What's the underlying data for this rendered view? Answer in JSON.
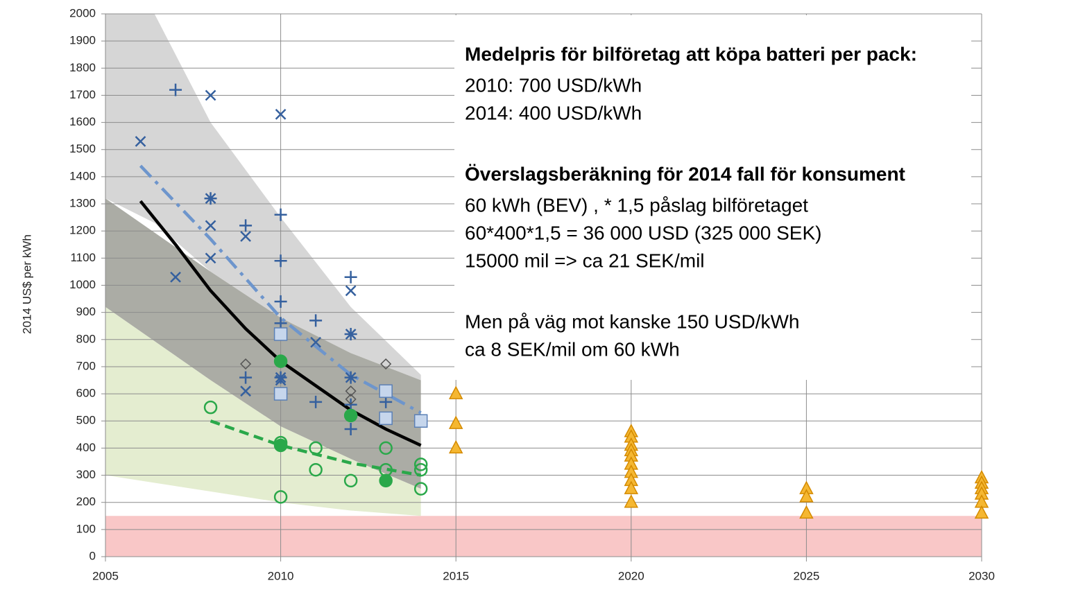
{
  "chart_data": {
    "type": "scatter",
    "ylabel": "2014 US$ per kWh",
    "xlim": [
      2005,
      2030
    ],
    "xticks": [
      2005,
      2010,
      2015,
      2020,
      2025,
      2030
    ],
    "ylim": [
      0,
      2000
    ],
    "yticks": [
      0,
      100,
      200,
      300,
      400,
      500,
      600,
      700,
      800,
      900,
      1000,
      1100,
      1200,
      1300,
      1400,
      1500,
      1600,
      1700,
      1800,
      1900,
      2000
    ],
    "grid": true,
    "bands": [
      {
        "color": "#d6d6d6",
        "x": [
          2005,
          2006.4,
          2008,
          2010,
          2012,
          2014
        ],
        "upper": [
          2000,
          2000,
          1600,
          1250,
          920,
          670
        ],
        "lower": [
          1320,
          1230,
          1050,
          880,
          750,
          650
        ]
      },
      {
        "color": "#abaca5",
        "x": [
          2005,
          2008,
          2010,
          2012,
          2014
        ],
        "upper": [
          1320,
          1050,
          880,
          750,
          650
        ],
        "lower": [
          920,
          650,
          480,
          360,
          250
        ]
      },
      {
        "color": "#e4edd0",
        "x": [
          2005,
          2008,
          2010,
          2012,
          2014
        ],
        "upper": [
          920,
          650,
          480,
          360,
          250
        ],
        "lower": [
          300,
          240,
          200,
          170,
          150
        ]
      },
      {
        "color": "#f9c7c7",
        "x": [
          2005,
          2030
        ],
        "upper": [
          150,
          150
        ],
        "lower": [
          0,
          0
        ]
      }
    ],
    "lines": [
      {
        "color": "#6d95cc",
        "dash": "22 9 5 9",
        "x": [
          2006,
          2008,
          2010,
          2012,
          2014
        ],
        "values": [
          1440,
          1170,
          880,
          670,
          530
        ]
      },
      {
        "color": "#000000",
        "dash": "none",
        "x": [
          2006,
          2007,
          2008,
          2009,
          2010,
          2011,
          2012,
          2013,
          2014
        ],
        "values": [
          1310,
          1150,
          980,
          840,
          720,
          630,
          540,
          470,
          410
        ]
      },
      {
        "color": "#2aa84a",
        "dash": "14 8",
        "x": [
          2008,
          2010,
          2012,
          2014
        ],
        "values": [
          500,
          410,
          345,
          300
        ]
      }
    ],
    "series": [
      {
        "marker": "plus",
        "color": "#35609e",
        "x": [
          2007,
          2009,
          2009,
          2010,
          2010,
          2010,
          2010,
          2011,
          2011,
          2012,
          2012,
          2012,
          2012,
          2012,
          2013
        ],
        "values": [
          1720,
          1220,
          660,
          1260,
          1090,
          940,
          860,
          870,
          570,
          1030,
          820,
          660,
          560,
          470,
          570
        ]
      },
      {
        "marker": "cross",
        "color": "#35609e",
        "x": [
          2006,
          2007,
          2008,
          2008,
          2008,
          2009,
          2009,
          2010,
          2010,
          2011,
          2012,
          2012,
          2012,
          2013
        ],
        "values": [
          1530,
          1030,
          1700,
          1220,
          1100,
          1180,
          610,
          1630,
          650,
          790,
          980,
          820,
          660,
          510
        ]
      },
      {
        "marker": "star",
        "color": "#35609e",
        "x": [
          2008,
          2010
        ],
        "values": [
          1320,
          660
        ]
      },
      {
        "marker": "diamond",
        "color": "#555555",
        "x": [
          2009,
          2012,
          2012,
          2013,
          2013
        ],
        "values": [
          710,
          610,
          580,
          710,
          510
        ]
      },
      {
        "marker": "square",
        "color": "#5b80b6",
        "x": [
          2010,
          2010,
          2013,
          2013,
          2014
        ],
        "values": [
          820,
          600,
          610,
          510,
          500
        ]
      },
      {
        "marker": "dot",
        "color": "#2aa84a",
        "x": [
          2010,
          2010,
          2012,
          2013
        ],
        "values": [
          720,
          410,
          520,
          280
        ]
      },
      {
        "marker": "ring",
        "color": "#2aa84a",
        "x": [
          2008,
          2010,
          2010,
          2011,
          2011,
          2012,
          2013,
          2013,
          2014,
          2014,
          2014
        ],
        "values": [
          550,
          420,
          220,
          400,
          320,
          280,
          400,
          320,
          340,
          320,
          250
        ]
      },
      {
        "marker": "triangle",
        "color": "#f5b731",
        "x": [
          2015,
          2015,
          2015,
          2020,
          2020,
          2020,
          2020,
          2020,
          2020,
          2020,
          2020,
          2020,
          2020,
          2025,
          2025,
          2025,
          2030,
          2030,
          2030,
          2030,
          2030,
          2030
        ],
        "values": [
          600,
          490,
          400,
          460,
          440,
          410,
          390,
          370,
          340,
          310,
          280,
          250,
          200,
          250,
          220,
          160,
          290,
          270,
          250,
          230,
          200,
          160
        ]
      }
    ],
    "annotations": [
      {
        "title": "Medelpris för bilföretag att köpa batteri per pack:",
        "lines": [
          "2010: 700 USD/kWh",
          "2014: 400 USD/kWh"
        ]
      },
      {
        "title": "Överslagsberäkning för 2014 fall för konsument",
        "lines": [
          "60 kWh (BEV) , * 1,5 påslag bilföretaget",
          "60*400*1,5 = 36 000 USD (325 000 SEK)",
          "15000 mil => ca 21 SEK/mil"
        ]
      },
      {
        "lines": [
          "Men på väg mot kanske 150 USD/kWh",
          "ca 8 SEK/mil om 60 kWh"
        ]
      }
    ]
  }
}
